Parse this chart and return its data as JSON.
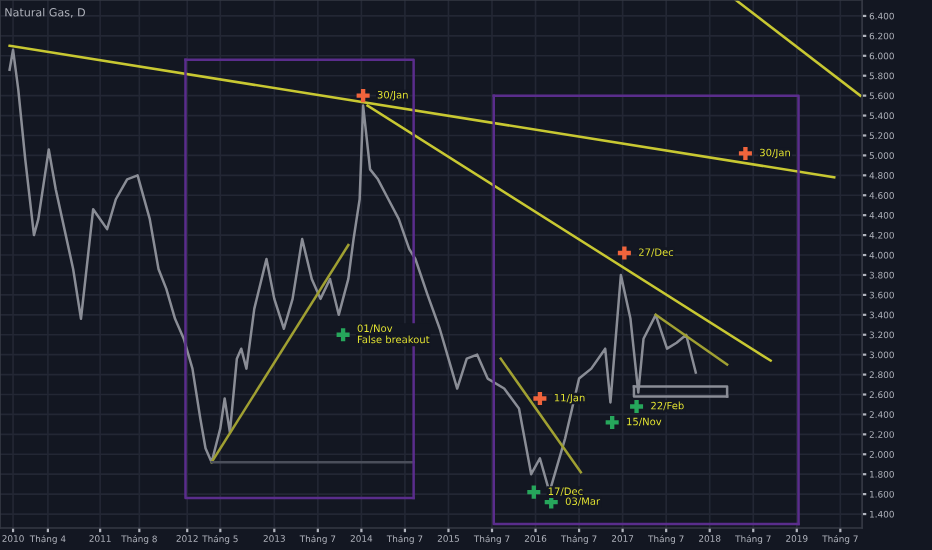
{
  "chart_data": {
    "type": "line",
    "title": "Natural Gas, D",
    "xlim": [
      2009.85,
      2019.75
    ],
    "ylim": [
      1.26,
      6.56
    ],
    "xticks": [
      2010,
      {
        "value": 2010.4,
        "label": "Tháng 4"
      },
      2011,
      {
        "value": 2011.45,
        "label": "Tháng 8"
      },
      2012,
      {
        "value": 2012.38,
        "label": "Tháng 5"
      },
      2013,
      {
        "value": 2013.5,
        "label": "Tháng 7"
      },
      2014,
      {
        "value": 2014.5,
        "label": "Tháng 7"
      },
      2015,
      {
        "value": 2015.5,
        "label": "Tháng 7"
      },
      2016,
      {
        "value": 2016.5,
        "label": "Tháng 7"
      },
      2017,
      {
        "value": 2017.5,
        "label": "Tháng 7"
      },
      2018,
      {
        "value": 2018.5,
        "label": "Tháng 7"
      },
      2019,
      {
        "value": 2019.5,
        "label": "Tháng 7"
      }
    ],
    "yticks": [
      {
        "value": 1.4,
        "label": "1.400"
      },
      {
        "value": 1.6,
        "label": "1.600"
      },
      {
        "value": 1.8,
        "label": "1.800"
      },
      {
        "value": 2.0,
        "label": "2.000"
      },
      {
        "value": 2.2,
        "label": "2.200"
      },
      {
        "value": 2.4,
        "label": "2.400"
      },
      {
        "value": 2.6,
        "label": "2.600"
      },
      {
        "value": 2.8,
        "label": "2.800"
      },
      {
        "value": 3.0,
        "label": "3.000"
      },
      {
        "value": 3.2,
        "label": "3.200"
      },
      {
        "value": 3.4,
        "label": "3.400"
      },
      {
        "value": 3.6,
        "label": "3.600"
      },
      {
        "value": 3.8,
        "label": "3.800"
      },
      {
        "value": 4.0,
        "label": "4.000"
      },
      {
        "value": 4.2,
        "label": "4.200"
      },
      {
        "value": 4.4,
        "label": "4.400"
      },
      {
        "value": 4.6,
        "label": "4.600"
      },
      {
        "value": 4.8,
        "label": "4.800"
      },
      {
        "value": 5.0,
        "label": "5.000"
      },
      {
        "value": 5.2,
        "label": "5.200"
      },
      {
        "value": 5.4,
        "label": "5.400"
      },
      {
        "value": 5.6,
        "label": "5.600"
      },
      {
        "value": 5.8,
        "label": "5.800"
      },
      {
        "value": 6.0,
        "label": "6.000"
      },
      {
        "value": 6.2,
        "label": "6.200"
      },
      {
        "value": 6.4,
        "label": "6.400"
      }
    ],
    "grid": true,
    "series": [
      {
        "type": "line",
        "color": "#8a8d96",
        "x": [
          2009.96,
          2010.0,
          2010.06,
          2010.14,
          2010.24,
          2010.29,
          2010.41,
          2010.49,
          2010.59,
          2010.69,
          2010.78,
          2010.92,
          2011.08,
          2011.18,
          2011.31,
          2011.43,
          2011.57,
          2011.67,
          2011.76,
          2011.86,
          2011.96,
          2012.06,
          2012.15,
          2012.21,
          2012.28,
          2012.38,
          2012.43,
          2012.49,
          2012.57,
          2012.62,
          2012.68,
          2012.77,
          2012.91,
          2013.0,
          2013.11,
          2013.21,
          2013.32,
          2013.43,
          2013.53,
          2013.64,
          2013.74,
          2013.85,
          2013.91,
          2013.98,
          2014.02,
          2014.1,
          2014.19,
          2014.31,
          2014.43,
          2014.55,
          2014.62,
          2014.76,
          2014.9,
          2015.0,
          2015.1,
          2015.21,
          2015.33,
          2015.45,
          2015.64,
          2015.81,
          2015.95,
          2016.05,
          2016.16,
          2016.34,
          2016.5,
          2016.64,
          2016.8,
          2016.86,
          2016.98,
          2017.09,
          2017.18,
          2017.24,
          2017.38,
          2017.51,
          2017.62,
          2017.73,
          2017.84
        ],
        "values": [
          5.86,
          6.06,
          5.66,
          4.96,
          4.2,
          4.36,
          5.06,
          4.66,
          4.26,
          3.86,
          3.36,
          4.46,
          4.26,
          4.56,
          4.76,
          4.8,
          4.36,
          3.86,
          3.66,
          3.36,
          3.16,
          2.86,
          2.36,
          2.06,
          1.92,
          2.26,
          2.56,
          2.22,
          2.96,
          3.06,
          2.86,
          3.46,
          3.96,
          3.56,
          3.26,
          3.56,
          4.16,
          3.76,
          3.56,
          3.76,
          3.4,
          3.76,
          4.16,
          4.56,
          5.5,
          4.86,
          4.76,
          4.56,
          4.36,
          4.06,
          3.96,
          3.6,
          3.26,
          2.96,
          2.66,
          2.96,
          3.0,
          2.76,
          2.66,
          2.46,
          1.8,
          1.96,
          1.62,
          2.16,
          2.76,
          2.86,
          3.06,
          2.52,
          3.8,
          3.36,
          2.62,
          3.16,
          3.4,
          3.06,
          3.12,
          3.2,
          2.82
        ]
      },
      {
        "type": "line",
        "color": "#c8c832",
        "x": [
          2009.96,
          2019.43
        ],
        "values": [
          6.1,
          4.78
        ]
      },
      {
        "type": "line",
        "color": "#c8c832",
        "x": [
          2014.07,
          2018.7
        ],
        "values": [
          5.5,
          2.94
        ]
      },
      {
        "type": "line",
        "color": "#c8c832",
        "x": [
          2018.3,
          2019.73
        ],
        "values": [
          6.56,
          5.6
        ]
      },
      {
        "type": "line",
        "color": "#a0a032",
        "x": [
          2012.28,
          2013.85
        ],
        "values": [
          1.92,
          4.1
        ]
      },
      {
        "type": "line",
        "color": "#a0a032",
        "x": [
          2015.6,
          2016.52
        ],
        "values": [
          2.96,
          1.82
        ]
      },
      {
        "type": "line",
        "color": "#a0a032",
        "x": [
          2017.38,
          2018.2
        ],
        "values": [
          3.4,
          2.9
        ]
      },
      {
        "type": "line",
        "color": "#4a4e5a",
        "x": [
          2012.28,
          2014.6
        ],
        "values": [
          1.92,
          1.92
        ]
      },
      {
        "type": "line",
        "color": "#5a2d8c",
        "x": [
          2011.98,
          2014.6,
          2014.6
        ],
        "values": [
          5.96,
          5.96,
          1.56
        ]
      },
      {
        "type": "line",
        "color": "#5a2d8c",
        "x": [
          2011.98,
          2011.98,
          2014.6
        ],
        "values": [
          5.96,
          1.56,
          1.56
        ]
      },
      {
        "type": "line",
        "color": "#5a2d8c",
        "x": [
          2015.52,
          2019.02,
          2019.02
        ],
        "values": [
          5.6,
          5.6,
          1.3
        ]
      },
      {
        "type": "line",
        "color": "#5a2d8c",
        "x": [
          2015.52,
          2015.52,
          2019.02
        ],
        "values": [
          5.6,
          1.3,
          1.3
        ]
      },
      {
        "type": "line",
        "color": "#8a8d96",
        "x": [
          2017.13,
          2018.2,
          2018.2
        ],
        "values": [
          2.68,
          2.68,
          2.58
        ]
      },
      {
        "type": "line",
        "color": "#8a8d96",
        "x": [
          2017.13,
          2017.13,
          2018.2
        ],
        "values": [
          2.68,
          2.58,
          2.58
        ]
      },
      {
        "type": "scatter",
        "marker": "cross",
        "color": "#f0643c",
        "x": [
          2014.02,
          2016.05,
          2017.02,
          2018.41
        ],
        "values": [
          5.6,
          2.56,
          4.02,
          5.02
        ]
      },
      {
        "type": "scatter",
        "marker": "cross",
        "color": "#26a65b",
        "x": [
          2013.79,
          2015.98,
          2016.18,
          2016.88,
          2017.16
        ],
        "values": [
          3.2,
          1.62,
          1.52,
          2.32,
          2.48
        ]
      }
    ],
    "annotations": [
      {
        "text": "30/Jan",
        "x": 2014.02,
        "y": 5.6
      },
      {
        "text": "01/Nov\nFalse breakout",
        "x": 2013.79,
        "y": 3.2
      },
      {
        "text": "11/Jan",
        "x": 2016.05,
        "y": 2.56
      },
      {
        "text": "27/Dec",
        "x": 2017.02,
        "y": 4.02
      },
      {
        "text": "30/Jan",
        "x": 2018.41,
        "y": 5.02
      },
      {
        "text": "17/Dec",
        "x": 2015.98,
        "y": 1.62
      },
      {
        "text": "03/Mar",
        "x": 2016.18,
        "y": 1.52
      },
      {
        "text": "15/Nov",
        "x": 2016.88,
        "y": 2.32
      },
      {
        "text": "22/Feb",
        "x": 2017.16,
        "y": 2.48
      }
    ]
  }
}
